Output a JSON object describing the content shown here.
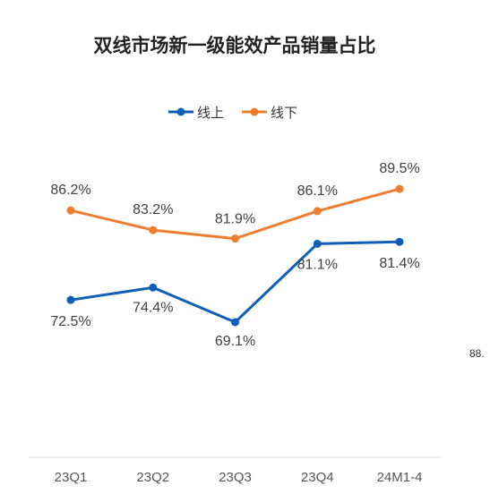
{
  "chart_data": {
    "type": "line",
    "title": "双线市场新一级能效产品销量占比",
    "categories": [
      "23Q1",
      "23Q2",
      "23Q3",
      "23Q4",
      "24M1-4"
    ],
    "series": [
      {
        "name": "线上",
        "color": "#0f5fb8",
        "values": [
          72.5,
          74.4,
          69.1,
          81.1,
          81.4
        ],
        "labels": [
          "72.5%",
          "74.4%",
          "69.1%",
          "81.1%",
          "81.4%"
        ]
      },
      {
        "name": "线下",
        "color": "#ee7d31",
        "values": [
          86.2,
          83.2,
          81.9,
          86.1,
          89.5
        ],
        "labels": [
          "86.2%",
          "83.2%",
          "81.9%",
          "86.1%",
          "89.5%"
        ]
      }
    ],
    "xlabel": "",
    "ylabel": "",
    "legend": "top-center",
    "grid": false
  },
  "stray_text": "88."
}
